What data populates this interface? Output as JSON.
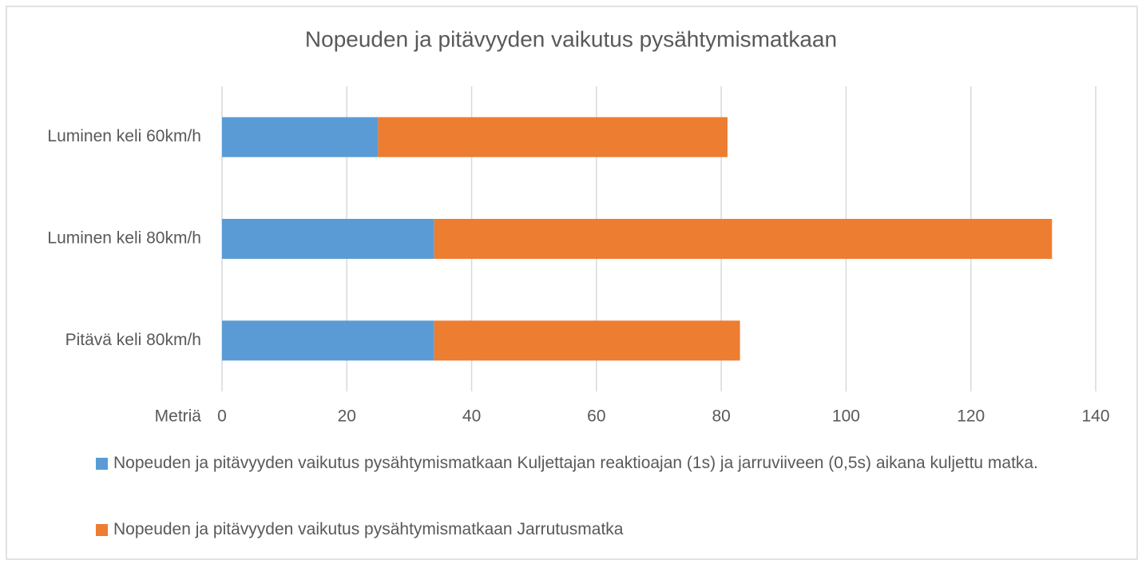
{
  "chart_data": {
    "type": "stacked-barh",
    "title": "Nopeuden ja pitävyyden vaikutus pysähtymismatkaan",
    "xlabel": "Metriä",
    "categories": [
      "Luminen keli 60km/h",
      "Luminen keli 80km/h",
      "Pitävä keli 80km/h"
    ],
    "series": [
      {
        "name": "Nopeuden ja pitävyyden vaikutus pysähtymismatkaan Kuljettajan reaktioajan (1s) ja jarruviiveen (0,5s) aikana kuljettu matka.",
        "color": "#5b9bd5",
        "values": [
          25,
          34,
          34
        ]
      },
      {
        "name": "Nopeuden ja pitävyyden vaikutus pysähtymismatkaan Jarrutusmatka",
        "color": "#ed7d31",
        "values": [
          56,
          99,
          49
        ]
      }
    ],
    "xlim": [
      0,
      140
    ],
    "xticks": [
      0,
      20,
      40,
      60,
      80,
      100,
      120,
      140
    ],
    "grid": true,
    "legend": "bottom"
  }
}
